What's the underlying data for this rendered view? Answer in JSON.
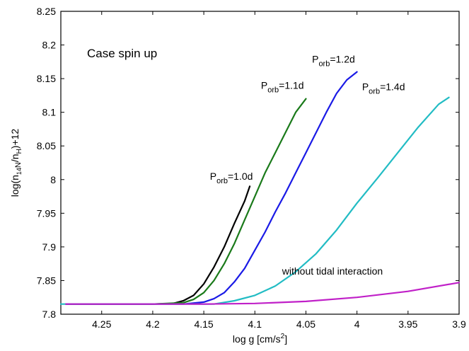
{
  "chart_data": {
    "type": "line",
    "xlabel_main": "log g [cm/s",
    "xlabel_sup": "2",
    "xlabel_end": "]",
    "ylabel_parts": {
      "p1": "log(n",
      "s1": "14",
      "p2": "N",
      "p3": "/n",
      "s2": "H",
      "p4": ")+12"
    },
    "xlim": [
      4.29,
      3.9
    ],
    "ylim": [
      7.8,
      8.25
    ],
    "x_reversed": true,
    "xticks": [
      4.25,
      4.2,
      4.15,
      4.1,
      4.05,
      4,
      3.95,
      3.9
    ],
    "xtick_labels": [
      "4.25",
      "4.2",
      "4.15",
      "4.1",
      "4.05",
      "4",
      "3.95",
      "3.9"
    ],
    "yticks": [
      7.8,
      7.85,
      7.9,
      7.95,
      8.0,
      8.05,
      8.1,
      8.15,
      8.2,
      8.25
    ],
    "ytick_labels": [
      "7.8",
      "7.85",
      "7.9",
      "7.95",
      "8",
      "8.05",
      "8.1",
      "8.15",
      "8.2",
      "8.25"
    ],
    "grid": false,
    "case_label": "Case spin up",
    "annotations": [
      {
        "prefix": "P",
        "sub": "orb",
        "suffix": "=1.0d",
        "anchor": [
          4.123,
          8.0
        ]
      },
      {
        "prefix": "P",
        "sub": "orb",
        "suffix": "=1.1d",
        "anchor": [
          4.073,
          8.135
        ]
      },
      {
        "prefix": "P",
        "sub": "orb",
        "suffix": "=1.2d",
        "anchor": [
          4.023,
          8.174
        ]
      },
      {
        "prefix": "P",
        "sub": "orb",
        "suffix": "=1.4d",
        "anchor": [
          3.974,
          8.133
        ]
      },
      {
        "prefix": "",
        "sub": "",
        "suffix": "without tidal interaction",
        "anchor": [
          4.024,
          7.859
        ]
      }
    ],
    "series": [
      {
        "color": "#000000",
        "x": [
          4.285,
          4.2,
          4.18,
          4.17,
          4.16,
          4.15,
          4.14,
          4.13,
          4.12,
          4.11,
          4.105
        ],
        "y": [
          7.815,
          7.815,
          7.816,
          7.82,
          7.828,
          7.845,
          7.87,
          7.9,
          7.935,
          7.968,
          7.99
        ]
      },
      {
        "color": "#1a7a1a",
        "x": [
          4.285,
          4.2,
          4.17,
          4.16,
          4.15,
          4.14,
          4.13,
          4.12,
          4.11,
          4.1,
          4.09,
          4.08,
          4.07,
          4.06,
          4.05
        ],
        "y": [
          7.815,
          7.815,
          7.817,
          7.822,
          7.832,
          7.85,
          7.875,
          7.905,
          7.94,
          7.975,
          8.01,
          8.04,
          8.07,
          8.1,
          8.12
        ]
      },
      {
        "color": "#1a1ae6",
        "x": [
          4.285,
          4.17,
          4.15,
          4.14,
          4.13,
          4.12,
          4.11,
          4.1,
          4.09,
          4.08,
          4.07,
          4.06,
          4.05,
          4.04,
          4.03,
          4.02,
          4.01,
          4.0
        ],
        "y": [
          7.815,
          7.815,
          7.818,
          7.823,
          7.832,
          7.848,
          7.868,
          7.895,
          7.922,
          7.952,
          7.98,
          8.01,
          8.04,
          8.07,
          8.1,
          8.128,
          8.148,
          8.16
        ]
      },
      {
        "color": "#22bcc4",
        "x": [
          4.29,
          4.14,
          4.12,
          4.1,
          4.08,
          4.06,
          4.04,
          4.02,
          4.0,
          3.98,
          3.96,
          3.94,
          3.92,
          3.91
        ],
        "y": [
          7.815,
          7.815,
          7.82,
          7.828,
          7.842,
          7.863,
          7.89,
          7.925,
          7.965,
          8.002,
          8.04,
          8.078,
          8.112,
          8.122
        ]
      },
      {
        "color": "#c020c8",
        "x": [
          4.285,
          4.2,
          4.15,
          4.1,
          4.05,
          4.0,
          3.95,
          3.9
        ],
        "y": [
          7.815,
          7.815,
          7.815,
          7.816,
          7.819,
          7.825,
          7.834,
          7.847
        ]
      }
    ]
  }
}
